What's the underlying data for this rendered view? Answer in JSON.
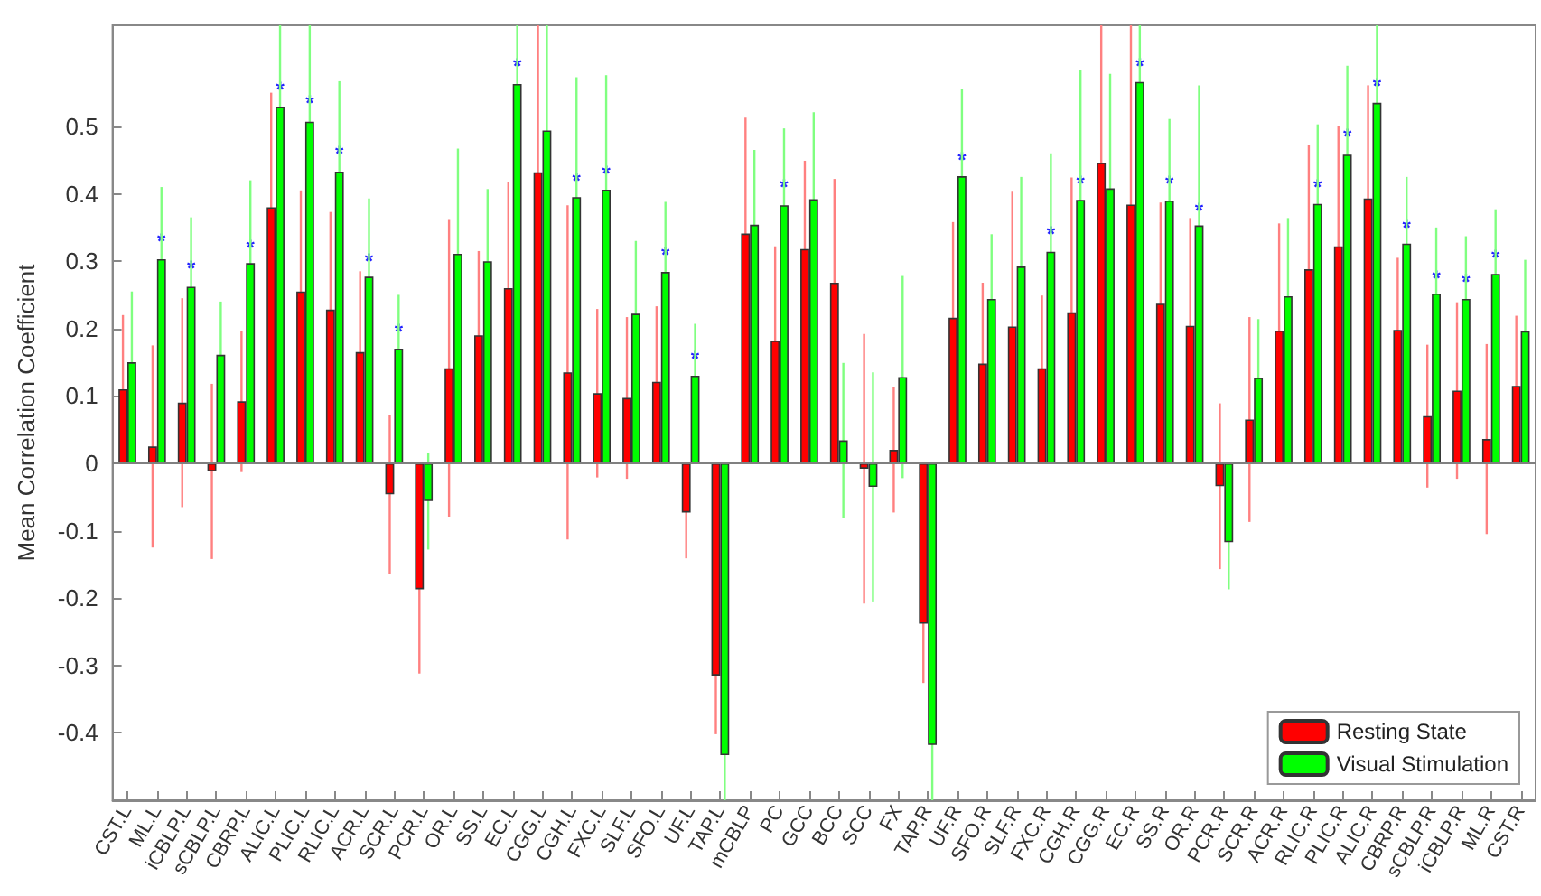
{
  "chart_data": {
    "type": "bar",
    "ylabel": "Mean Correlation Coefficient",
    "categories": [
      "CST.L",
      "ML.L",
      "iCBLP.L",
      "sCBLP.L",
      "CBRP.L",
      "ALIC.L",
      "PLIC.L",
      "RLIC.L",
      "ACR.L",
      "SCR.L",
      "PCR.L",
      "OR.L",
      "SS.L",
      "EC.L",
      "CGG.L",
      "CGH.L",
      "FXC.L",
      "SLF.L",
      "SFO.L",
      "UF.L",
      "TAP.L",
      "mCBLP",
      "PC",
      "GCC",
      "BCC",
      "SCC",
      "FX",
      "TAP.R",
      "UF.R",
      "SFO.R",
      "SLF.R",
      "FXC.R",
      "CGH.R",
      "CGG.R",
      "EC.R",
      "SS.R",
      "OR.R",
      "PCR.R",
      "SCR.R",
      "ACR.R",
      "RLIC.R",
      "PLIC.R",
      "ALIC.R",
      "CBRP.R",
      "sCBLP.R",
      "iCBLP.R",
      "ML.R",
      "CST.R"
    ],
    "series": [
      {
        "name": "Resting State",
        "color": "#ff0000",
        "values": [
          0.11,
          0.025,
          0.09,
          -0.012,
          0.092,
          0.38,
          0.255,
          0.228,
          0.165,
          -0.046,
          -0.187,
          0.141,
          0.19,
          0.26,
          0.432,
          0.135,
          0.104,
          0.097,
          0.121,
          -0.073,
          -0.315,
          0.341,
          0.182,
          0.318,
          0.268,
          -0.008,
          0.02,
          -0.238,
          0.216,
          0.148,
          0.203,
          0.141,
          0.224,
          0.446,
          0.384,
          0.237,
          0.204,
          -0.034,
          0.065,
          0.197,
          0.288,
          0.322,
          0.393,
          0.198,
          0.07,
          0.108,
          0.036,
          0.115
        ],
        "errors": [
          0.11,
          0.15,
          0.155,
          0.13,
          0.105,
          0.17,
          0.15,
          0.145,
          0.12,
          0.118,
          0.125,
          0.22,
          0.125,
          0.157,
          [
            0.23,
            0.65
          ],
          0.248,
          0.125,
          0.12,
          0.112,
          0.068,
          0.087,
          0.172,
          0.14,
          0.131,
          0.154,
          0.2,
          0.093,
          0.088,
          0.142,
          0.12,
          0.2,
          0.108,
          0.2,
          [
            0.25,
            0.65
          ],
          [
            0.2,
            0.65
          ],
          0.15,
          0.16,
          0.123,
          0.152,
          0.159,
          0.185,
          0.178,
          0.168,
          0.107,
          0.106,
          0.131,
          0.141,
          0.104
        ]
      },
      {
        "name": "Visual Stimulation",
        "color": "#00ff00",
        "values": [
          0.15,
          0.303,
          0.262,
          0.161,
          0.297,
          0.529,
          0.507,
          0.433,
          0.277,
          0.17,
          -0.056,
          0.311,
          0.3,
          0.563,
          0.494,
          0.395,
          0.406,
          0.222,
          0.284,
          0.13,
          -0.433,
          0.354,
          0.383,
          0.392,
          0.034,
          -0.035,
          0.128,
          -0.418,
          0.426,
          0.244,
          0.292,
          0.314,
          0.391,
          0.408,
          0.566,
          0.39,
          0.353,
          -0.117,
          0.127,
          0.248,
          0.385,
          0.458,
          0.535,
          0.326,
          0.252,
          0.244,
          0.281,
          0.196
        ],
        "errors": [
          0.105,
          0.107,
          0.103,
          0.079,
          0.123,
          [
            0.39,
            0.65
          ],
          [
            0.37,
            0.65
          ],
          0.134,
          0.116,
          0.08,
          0.072,
          0.156,
          0.107,
          [
            0.42,
            0.65
          ],
          [
            0.35,
            0.65
          ],
          0.178,
          0.17,
          0.108,
          0.104,
          0.077,
          [
            -0.5,
            -0.3
          ],
          0.111,
          0.114,
          0.129,
          0.115,
          0.17,
          0.15,
          [
            -0.5,
            -0.3
          ],
          0.13,
          0.096,
          0.133,
          0.146,
          0.192,
          0.17,
          [
            0.42,
            0.65
          ],
          0.121,
          0.208,
          0.07,
          0.087,
          0.116,
          0.118,
          0.132,
          [
            0.4,
            0.65
          ],
          0.099,
          0.098,
          0.093,
          0.096,
          0.106
        ]
      }
    ],
    "annotations": [
      {
        "text": "*",
        "x": "ML.L",
        "y": 0.33
      },
      {
        "text": "*",
        "x": "iCBLP.L",
        "y": 0.29
      },
      {
        "text": "*",
        "x": "CBRP.L",
        "y": 0.32
      },
      {
        "text": "*",
        "x": "ALIC.L",
        "y": 0.555
      },
      {
        "text": "*",
        "x": "PLIC.L",
        "y": 0.535
      },
      {
        "text": "*",
        "x": "RLIC.L",
        "y": 0.46
      },
      {
        "text": "*",
        "x": "ACR.L",
        "y": 0.3
      },
      {
        "text": "*",
        "x": "SCR.L",
        "y": 0.195
      },
      {
        "text": "*",
        "x": "EC.L",
        "y": 0.59
      },
      {
        "text": "*",
        "x": "CGH.L",
        "y": 0.42
      },
      {
        "text": "*",
        "x": "FXC.L",
        "y": 0.43
      },
      {
        "text": "*",
        "x": "SFO.L",
        "y": 0.31
      },
      {
        "text": "*",
        "x": "UF.L",
        "y": 0.155
      },
      {
        "text": "*",
        "x": "PC",
        "y": 0.41
      },
      {
        "text": "*",
        "x": "UF.R",
        "y": 0.45
      },
      {
        "text": "*",
        "x": "FXC.R",
        "y": 0.34
      },
      {
        "text": "*",
        "x": "CGH.R",
        "y": 0.415
      },
      {
        "text": "*",
        "x": "EC.R",
        "y": 0.59
      },
      {
        "text": "*",
        "x": "SS.R",
        "y": 0.415
      },
      {
        "text": "*",
        "x": "OR.R",
        "y": 0.375
      },
      {
        "text": "*",
        "x": "RLIC.R",
        "y": 0.41
      },
      {
        "text": "*",
        "x": "PLIC.R",
        "y": 0.485
      },
      {
        "text": "*",
        "x": "ALIC.R",
        "y": 0.56
      },
      {
        "text": "*",
        "x": "CBRP.R",
        "y": 0.35
      },
      {
        "text": "*",
        "x": "sCBLP.R",
        "y": 0.275
      },
      {
        "text": "*",
        "x": "iCBLP.R",
        "y": 0.27
      },
      {
        "text": "*",
        "x": "ML.R",
        "y": 0.305
      }
    ],
    "ref_lines": [
      {
        "axis": "y",
        "value": 0,
        "color": "#808080"
      }
    ],
    "ylim": [
      -0.5,
      0.65
    ],
    "yticks": [
      -0.4,
      -0.3,
      -0.2,
      -0.1,
      0,
      0.1,
      0.2,
      0.3,
      0.4,
      0.5
    ],
    "grid": false,
    "legend": "bottom right"
  }
}
